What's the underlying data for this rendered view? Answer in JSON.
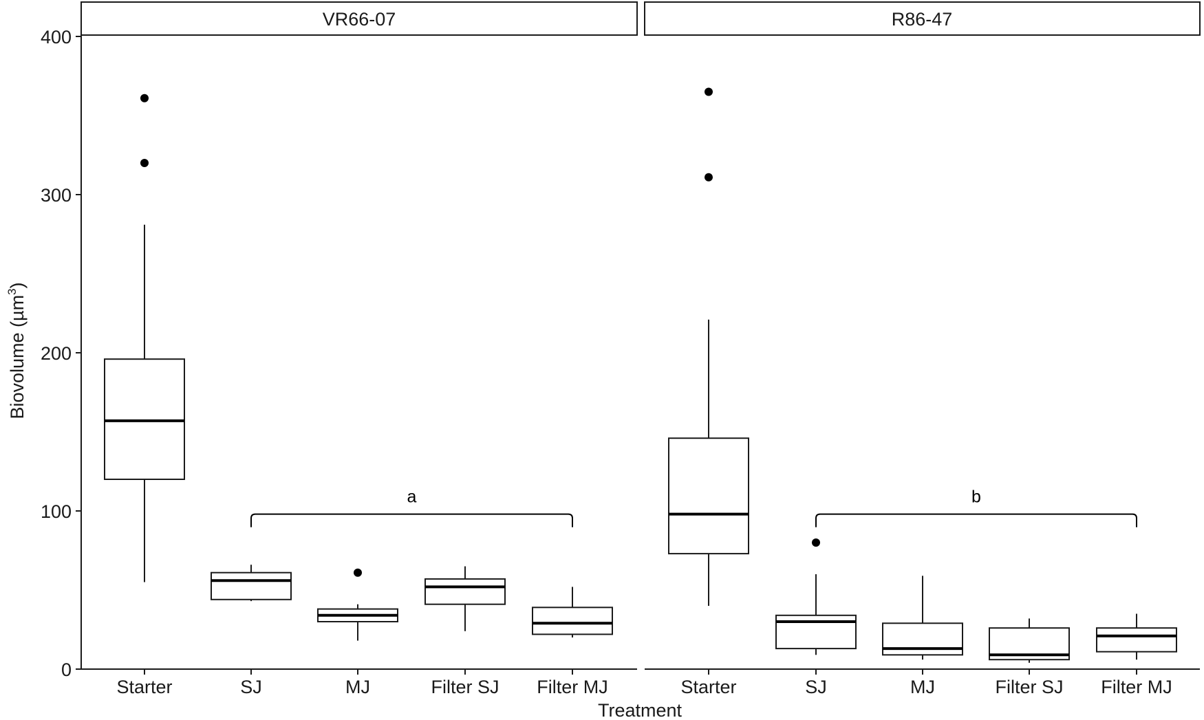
{
  "chart_data": {
    "type": "boxplot",
    "xlabel": "Treatment",
    "ylabel": "Biovolume (µm",
    "ylabel_superscript": "3",
    "ylabel_close": ")",
    "ylim": [
      0,
      400
    ],
    "yticks": [
      0,
      100,
      200,
      300,
      400
    ],
    "grid": false,
    "categories": [
      "Starter",
      "SJ",
      "MJ",
      "Filter SJ",
      "Filter MJ"
    ],
    "facets": [
      {
        "label": "VR66-07",
        "boxes": [
          {
            "category": "Starter",
            "whisker_low": 55,
            "q1": 120,
            "median": 157,
            "q3": 196,
            "whisker_high": 281,
            "outliers": [
              320,
              361
            ]
          },
          {
            "category": "SJ",
            "whisker_low": 43,
            "q1": 44,
            "median": 56,
            "q3": 61,
            "whisker_high": 66,
            "outliers": []
          },
          {
            "category": "MJ",
            "whisker_low": 18,
            "q1": 30,
            "median": 34,
            "q3": 38,
            "whisker_high": 41,
            "outliers": [
              61
            ]
          },
          {
            "category": "Filter SJ",
            "whisker_low": 24,
            "q1": 41,
            "median": 52,
            "q3": 57,
            "whisker_high": 65,
            "outliers": []
          },
          {
            "category": "Filter MJ",
            "whisker_low": 20,
            "q1": 22,
            "median": 29,
            "q3": 39,
            "whisker_high": 52,
            "outliers": []
          }
        ],
        "annotation": {
          "text": "a",
          "from": "SJ",
          "to": "Filter MJ",
          "y": 98
        }
      },
      {
        "label": "R86-47",
        "boxes": [
          {
            "category": "Starter",
            "whisker_low": 40,
            "q1": 73,
            "median": 98,
            "q3": 146,
            "whisker_high": 221,
            "outliers": [
              311,
              365
            ]
          },
          {
            "category": "SJ",
            "whisker_low": 9,
            "q1": 13,
            "median": 30,
            "q3": 34,
            "whisker_high": 60,
            "outliers": [
              80
            ]
          },
          {
            "category": "MJ",
            "whisker_low": 6,
            "q1": 9,
            "median": 13,
            "q3": 29,
            "whisker_high": 59,
            "outliers": []
          },
          {
            "category": "Filter SJ",
            "whisker_low": 4,
            "q1": 6,
            "median": 9,
            "q3": 26,
            "whisker_high": 32,
            "outliers": []
          },
          {
            "category": "Filter MJ",
            "whisker_low": 6,
            "q1": 11,
            "median": 21,
            "q3": 26,
            "whisker_high": 35,
            "outliers": []
          }
        ],
        "annotation": {
          "text": "b",
          "from": "SJ",
          "to": "Filter MJ",
          "y": 98
        }
      }
    ]
  }
}
